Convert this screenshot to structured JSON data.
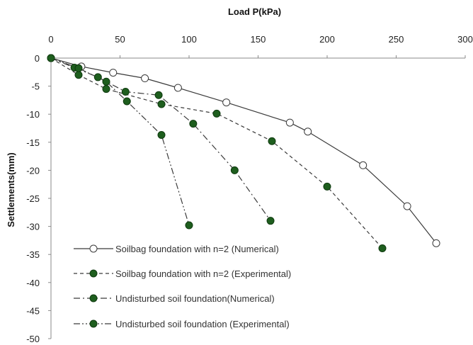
{
  "chart_data": {
    "type": "line",
    "xlabel": "Load P(kPa)",
    "ylabel": "Settlements(mm)",
    "xlim": [
      0,
      300
    ],
    "ylim": [
      -50,
      0
    ],
    "x_ticks": [
      "0",
      "50",
      "100",
      "150",
      "200",
      "250",
      "300"
    ],
    "y_ticks": [
      "0",
      "-5",
      "-10",
      "-15",
      "-20",
      "-25",
      "-30",
      "-35",
      "-40",
      "-45",
      "-50"
    ],
    "x_axis_position": "top",
    "grid": false,
    "legend_position": "bottom-left",
    "series": [
      {
        "name": "Soilbag foundation with n=2 (Numerical)",
        "line_style": "solid",
        "marker": "open-circle",
        "x": [
          0,
          22,
          45,
          68,
          92,
          127,
          173,
          186,
          226,
          258,
          279
        ],
        "y": [
          0,
          -1.5,
          -2.6,
          -3.6,
          -5.3,
          -7.9,
          -11.5,
          -13.1,
          -19.1,
          -26.4,
          -33.0
        ]
      },
      {
        "name": "Soilbag foundation with n=2 (Experimental)",
        "line_style": "dash",
        "marker": "filled-circle",
        "x": [
          0,
          20,
          40,
          80,
          120,
          160,
          200,
          240
        ],
        "y": [
          0,
          -3.0,
          -5.5,
          -8.2,
          -9.9,
          -14.8,
          -22.9,
          -33.9
        ]
      },
      {
        "name": "Undisturbed soil foundation(Numerical)",
        "line_style": "dash-dot",
        "marker": "filled-circle",
        "x": [
          0,
          17,
          34,
          54,
          78,
          103,
          133,
          159
        ],
        "y": [
          0,
          -1.7,
          -3.4,
          -6.0,
          -6.6,
          -11.7,
          -20.0,
          -29.0
        ]
      },
      {
        "name": "Undisturbed soil foundation (Experimental)",
        "line_style": "dash-dot-dot",
        "marker": "filled-circle",
        "x": [
          0,
          20,
          40,
          55,
          80,
          100
        ],
        "y": [
          0,
          -1.8,
          -4.2,
          -7.7,
          -13.7,
          -29.8
        ]
      }
    ]
  },
  "colors": {
    "line": "#3a3a3a",
    "marker_fill": "#1e5e1e",
    "marker_edge": "#0f3a0f",
    "open_marker_fill": "#ffffff"
  }
}
